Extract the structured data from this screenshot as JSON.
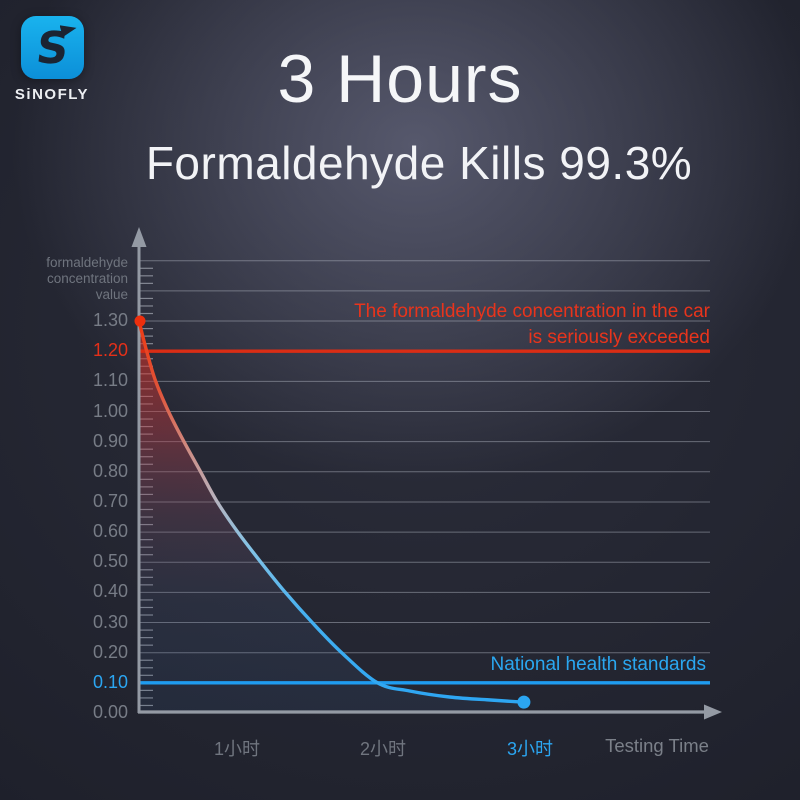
{
  "brand": {
    "logo_letter": "S",
    "logo_text": "SiNOFLY"
  },
  "header": {
    "title": "3 Hours",
    "subtitle": "Formaldehyde Kills 99.3%"
  },
  "chart_data": {
    "type": "area",
    "title": "3 Hours Formaldehyde Kills 99.3%",
    "x_axis": {
      "label": "Testing Time",
      "ticks": [
        {
          "label": "1小时"
        },
        {
          "label": "2小时"
        },
        {
          "label": "3小时",
          "color": "#2ba6f2"
        }
      ]
    },
    "y_axis": {
      "label": "formaldehyde\nconcentration\nvalue",
      "range": [
        0,
        1.5
      ],
      "gridline_step": 0.1,
      "minor_tick_step": 0.025,
      "ticks": [
        {
          "label": "1.30"
        },
        {
          "label": "1.20",
          "color": "#e43019"
        },
        {
          "label": "1.10"
        },
        {
          "label": "1.00"
        },
        {
          "label": "0.90"
        },
        {
          "label": "0.80"
        },
        {
          "label": "0.70"
        },
        {
          "label": "0.60"
        },
        {
          "label": "0.50"
        },
        {
          "label": "0.40"
        },
        {
          "label": "0.30"
        },
        {
          "label": "0.20"
        },
        {
          "label": "0.10",
          "color": "#2ba6f2"
        },
        {
          "label": "0.00"
        }
      ]
    },
    "reference_lines": [
      {
        "value": 1.2,
        "color": "#da2d15",
        "label_lines": [
          "The formaldehyde concentration in the car",
          "is seriously exceeded"
        ]
      },
      {
        "value": 0.1,
        "color": "#1f9cf0",
        "label_lines": [
          "National health standards"
        ]
      }
    ],
    "series": [
      {
        "name": "formaldehyde concentration",
        "unit_x": "hours",
        "points": [
          [
            0,
            1.3
          ],
          [
            0.06,
            1.2
          ],
          [
            0.13,
            1.1
          ],
          [
            0.23,
            1.0
          ],
          [
            0.35,
            0.9
          ],
          [
            0.48,
            0.8
          ],
          [
            0.61,
            0.7
          ],
          [
            0.77,
            0.6
          ],
          [
            0.95,
            0.5
          ],
          [
            1.14,
            0.4
          ],
          [
            1.35,
            0.3
          ],
          [
            1.58,
            0.2
          ],
          [
            1.86,
            0.1
          ],
          [
            2.11,
            0.073
          ],
          [
            2.42,
            0.053
          ],
          [
            2.74,
            0.043
          ],
          [
            3.0,
            0.036
          ]
        ],
        "start_dot": {
          "t": 0,
          "v": 1.3,
          "color": "#ee2f0d"
        },
        "end_dot": {
          "t": 3,
          "v": 0.036,
          "color": "#2ba6f2"
        }
      }
    ],
    "colors": {
      "grid": "#bcc1cb",
      "axis": "#949aa4",
      "curve_top": "#ee3a13",
      "curve_bottom": "#2aa4f2"
    }
  }
}
